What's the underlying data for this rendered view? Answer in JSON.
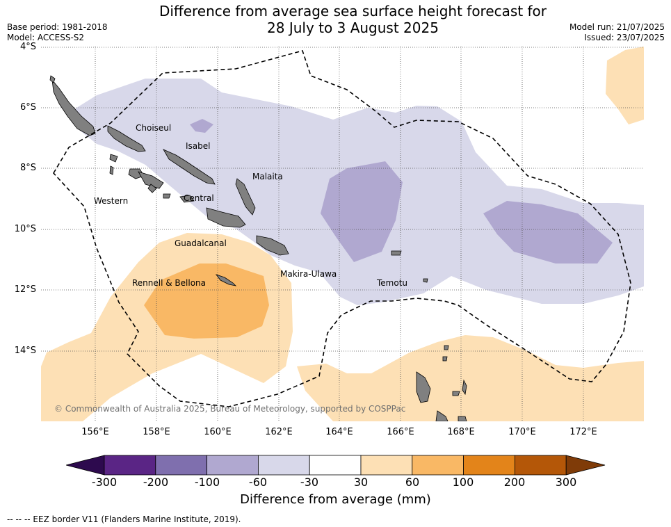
{
  "title": {
    "line1": "Difference from average sea surface height forecast for",
    "line2": "28 July to 3 August 2025"
  },
  "meta": {
    "base_period": "Base period: 1981-2018",
    "model": "Model: ACCESS-S2",
    "model_run": "Model run: 21/07/2025",
    "issued": "Issued: 23/07/2025"
  },
  "map": {
    "lat_labels": [
      "4°S",
      "6°S",
      "8°S",
      "10°S",
      "12°S",
      "14°S"
    ],
    "lon_labels": [
      "156°E",
      "158°E",
      "160°E",
      "162°E",
      "164°E",
      "166°E",
      "168°E",
      "170°E",
      "172°E"
    ],
    "places": [
      "Choiseul",
      "Isabel",
      "Malaita",
      "Western",
      "Central",
      "Guadalcanal",
      "Makira-Ulawa",
      "Rennell & Bellona",
      "Temotu"
    ],
    "copyright": "© Commonwealth of Australia 2025, Bureau of Meteorology, supported by COSPPac",
    "colors": {
      "land": "#808080",
      "neg_30_60": "#d8d8ea",
      "neg_60_100": "#b0a8d0",
      "pos_30_60": "#fde0b5",
      "pos_60_100": "#f9b865",
      "eez_line": "#000000"
    }
  },
  "colorbar": {
    "ticks": [
      "-300",
      "-200",
      "-100",
      "-60",
      "-30",
      "30",
      "60",
      "100",
      "200",
      "300"
    ],
    "colors": [
      "#5a2585",
      "#7f6fae",
      "#b0a8d0",
      "#d8d8ea",
      "#ffffff",
      "#fde0b5",
      "#f9b865",
      "#e3841a",
      "#b45708"
    ],
    "extend_low": "#2d0a4e",
    "extend_high": "#7f3b08",
    "label": "Difference from average (mm)"
  },
  "legend": {
    "text": "--  --  -- EEZ border V11 (Flanders Marine Institute, 2019)."
  }
}
